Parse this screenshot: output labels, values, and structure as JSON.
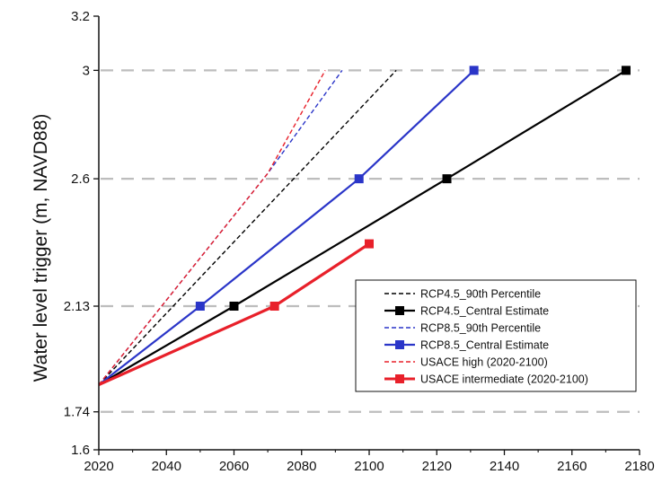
{
  "chart_data": {
    "type": "line",
    "title": "",
    "xlabel": "",
    "ylabel": "Water level trigger (m, NAVD88)",
    "xlim": [
      2020,
      2180
    ],
    "ylim": [
      1.6,
      3.2
    ],
    "xticks": [
      2020,
      2040,
      2060,
      2080,
      2100,
      2120,
      2140,
      2160,
      2180
    ],
    "yticks": [
      1.6,
      1.74,
      2.13,
      2.6,
      3,
      3.2
    ],
    "ytick_labels": [
      "1.6",
      "1.74",
      "2.13",
      "2.6",
      "3",
      "3.2"
    ],
    "grid": {
      "horizontal_dashed_at": [
        1.74,
        2.13,
        2.6,
        3
      ],
      "color": "#bdbdbd"
    },
    "legend_position": "bottom-right",
    "series": [
      {
        "name": "RCP4.5_90th Percentile",
        "color": "#000000",
        "style": "dashed",
        "marker": "none",
        "x": [
          2020,
          2108
        ],
        "y": [
          1.84,
          3.0
        ]
      },
      {
        "name": "RCP4.5_Central Estimate",
        "color": "#000000",
        "style": "solid",
        "marker": "square",
        "x": [
          2020,
          2060,
          2123,
          2176
        ],
        "y": [
          1.84,
          2.13,
          2.6,
          3.0
        ]
      },
      {
        "name": "RCP8.5_90th Percentile",
        "color": "#2a35c8",
        "style": "dashed",
        "marker": "none",
        "x": [
          2020,
          2070,
          2092
        ],
        "y": [
          1.84,
          2.62,
          3.0
        ]
      },
      {
        "name": "RCP8.5_Central Estimate",
        "color": "#2a35c8",
        "style": "solid",
        "marker": "square",
        "x": [
          2020,
          2050,
          2097,
          2131
        ],
        "y": [
          1.84,
          2.13,
          2.6,
          3.0
        ]
      },
      {
        "name": "USACE high (2020-2100)",
        "color": "#e8202a",
        "style": "dashed",
        "marker": "none",
        "x": [
          2020,
          2070,
          2087
        ],
        "y": [
          1.84,
          2.62,
          3.0
        ]
      },
      {
        "name": "USACE intermediate (2020-2100)",
        "color": "#e8202a",
        "style": "solid",
        "marker": "square",
        "x": [
          2020,
          2072,
          2100
        ],
        "y": [
          1.84,
          2.13,
          2.36
        ]
      }
    ]
  }
}
